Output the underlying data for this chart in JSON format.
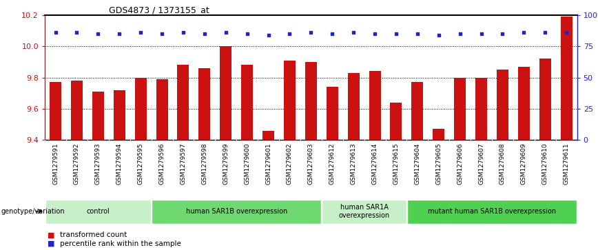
{
  "title": "GDS4873 / 1373155_at",
  "samples": [
    "GSM1279591",
    "GSM1279592",
    "GSM1279593",
    "GSM1279594",
    "GSM1279595",
    "GSM1279596",
    "GSM1279597",
    "GSM1279598",
    "GSM1279599",
    "GSM1279600",
    "GSM1279601",
    "GSM1279602",
    "GSM1279603",
    "GSM1279612",
    "GSM1279613",
    "GSM1279614",
    "GSM1279615",
    "GSM1279604",
    "GSM1279605",
    "GSM1279606",
    "GSM1279607",
    "GSM1279608",
    "GSM1279609",
    "GSM1279610",
    "GSM1279611"
  ],
  "bar_values": [
    9.77,
    9.78,
    9.71,
    9.72,
    9.8,
    9.79,
    9.88,
    9.86,
    10.0,
    9.88,
    9.46,
    9.91,
    9.9,
    9.74,
    9.83,
    9.84,
    9.64,
    9.77,
    9.47,
    9.8,
    9.8,
    9.85,
    9.87,
    9.92,
    10.19
  ],
  "percentile_values": [
    10.09,
    10.09,
    10.08,
    10.08,
    10.09,
    10.08,
    10.09,
    10.08,
    10.09,
    10.08,
    10.07,
    10.08,
    10.09,
    10.08,
    10.09,
    10.08,
    10.08,
    10.08,
    10.07,
    10.08,
    10.08,
    10.08,
    10.09,
    10.09,
    10.09
  ],
  "bar_color": "#cc1111",
  "dot_color": "#2222cc",
  "ylim_left": [
    9.4,
    10.2
  ],
  "ylim_right": [
    0,
    100
  ],
  "yticks_left": [
    9.4,
    9.6,
    9.8,
    10.0,
    10.2
  ],
  "yticks_right": [
    0,
    25,
    50,
    75,
    100
  ],
  "gridlines": [
    9.6,
    9.8,
    10.0
  ],
  "groups": [
    {
      "label": "control",
      "start": 0,
      "end": 5,
      "color": "#c8f0c8"
    },
    {
      "label": "human SAR1B overexpression",
      "start": 5,
      "end": 13,
      "color": "#70d870"
    },
    {
      "label": "human SAR1A\noverexpression",
      "start": 13,
      "end": 17,
      "color": "#c8f0c8"
    },
    {
      "label": "mutant human SAR1B overexpression",
      "start": 17,
      "end": 25,
      "color": "#50d050"
    }
  ],
  "genotype_label": "genotype/variation",
  "legend_items": [
    {
      "label": "transformed count",
      "color": "#cc1111"
    },
    {
      "label": "percentile rank within the sample",
      "color": "#2222cc"
    }
  ],
  "background_color": "#ffffff",
  "tick_color_left": "#cc1111",
  "tick_color_right": "#2222cc",
  "xtick_bg": "#d8d8d8"
}
